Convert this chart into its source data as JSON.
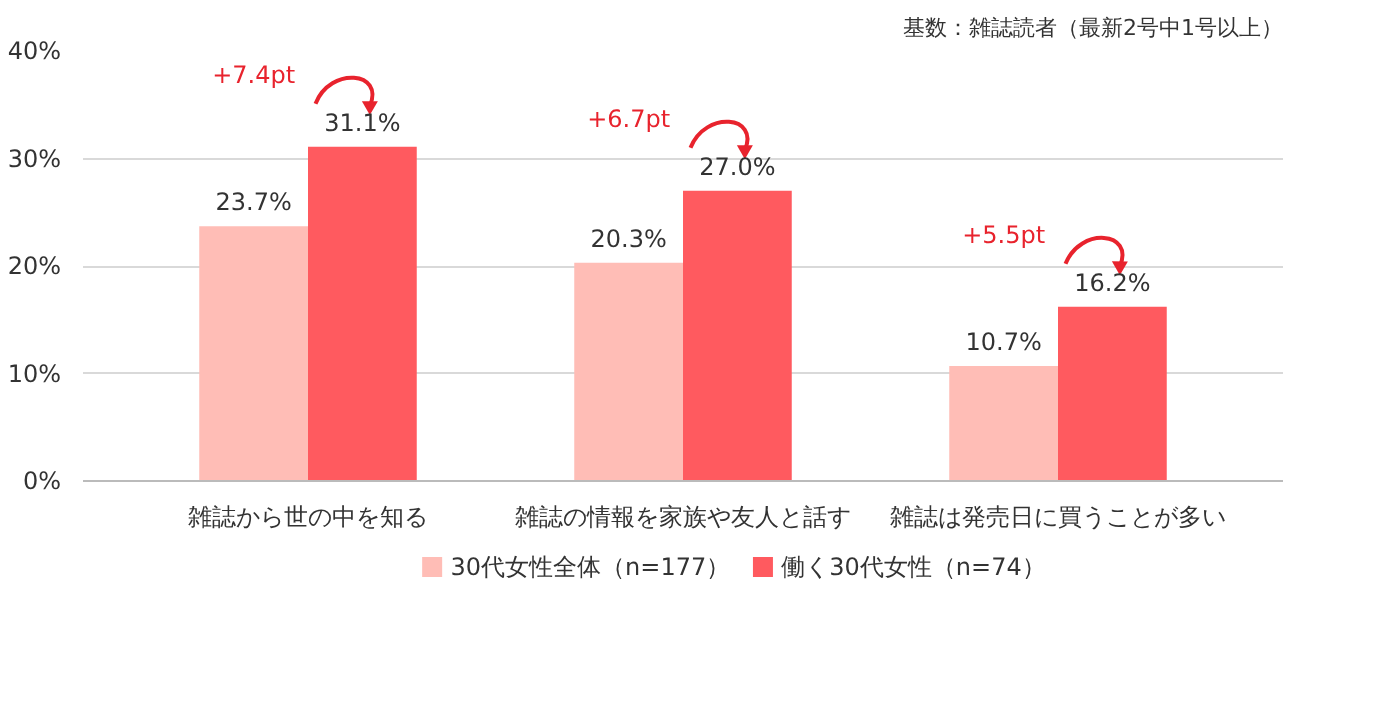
{
  "chart_data": {
    "type": "bar",
    "categories": [
      "雑誌から世の中を知る",
      "雑誌の情報を家族や友人と話す",
      "雑誌は発売日に買うことが多い"
    ],
    "series": [
      {
        "name": "30代女性全体（n=177）",
        "color": "#ffbdb6",
        "values": [
          23.7,
          20.3,
          10.7
        ],
        "value_labels": [
          "23.7%",
          "20.3%",
          "10.7%"
        ]
      },
      {
        "name": "働く30代女性（n=74）",
        "color": "#ff5a5f",
        "values": [
          31.1,
          27.0,
          16.2
        ],
        "value_labels": [
          "31.1%",
          "27.0%",
          "16.2%"
        ]
      }
    ],
    "ylim": [
      0,
      40
    ],
    "yticks": [
      {
        "value": 0,
        "label": "0%"
      },
      {
        "value": 10,
        "label": "10%"
      },
      {
        "value": 20,
        "label": "20%"
      },
      {
        "value": 30,
        "label": "30%"
      },
      {
        "value": 40,
        "label": "40%"
      }
    ],
    "grid": "y",
    "legend": "bottom",
    "annotations": [
      "基数：雑誌読者（最新2号中1号以上）",
      "+7.4pt",
      "+6.7pt",
      "+5.5pt"
    ]
  }
}
